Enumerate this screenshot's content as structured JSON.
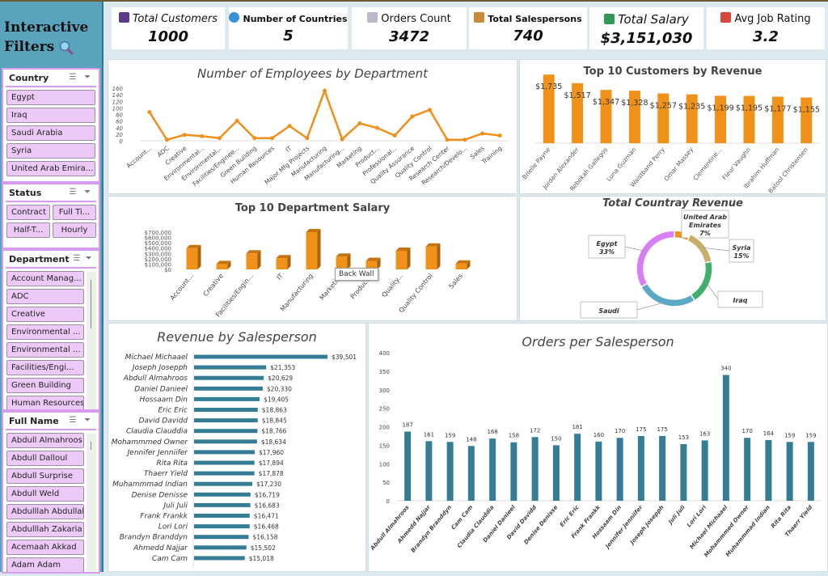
{
  "sidebar": {
    "title_line1": "Interactive",
    "title_line2": "Filters",
    "title_icon": "magnifier-icon",
    "slicers": {
      "country": {
        "label": "Country",
        "items": [
          "Egypt",
          "Iraq",
          "Saudi Arabia",
          "Syria",
          "United Arab Emira..."
        ]
      },
      "status": {
        "label": "Status",
        "items": [
          "Contract",
          "Full Ti...",
          "Half-T...",
          "Hourly"
        ]
      },
      "department": {
        "label": "Department",
        "items": [
          "Account Manag...",
          "ADC",
          "Creative",
          "Environmental ...",
          "Environmental ...",
          "Facilities/Engi...",
          "Green Building",
          "Human Resources"
        ]
      },
      "fullname": {
        "label": "Full Name",
        "items": [
          "Abdull Almahroos",
          "Abdull Dalloul",
          "Abdull Surprise",
          "Abdull Weld",
          "Abdulllah Abdullah",
          "Abdulllah Zakaria",
          "Acemaah Akkad",
          "Adam Adam"
        ]
      }
    },
    "icons": {
      "multi_select": "multi-select-icon",
      "clear_filter": "clear-filter-icon"
    }
  },
  "kpis": [
    {
      "label": "Total Customers",
      "value": "1000",
      "icon": "customer-icon",
      "color": "#5b3a8c"
    },
    {
      "label": "Number of Countries",
      "value": "5",
      "icon": "globe-icon",
      "color": "#3b8fd6"
    },
    {
      "label": "Orders Count",
      "value": "3472",
      "icon": "receipt-icon",
      "color": "#b9b9c9"
    },
    {
      "label": "Total Salespersons",
      "value": "740",
      "icon": "salesperson-icon",
      "color": "#c98a3a"
    },
    {
      "label": "Total Salary",
      "value": "$3,151,030",
      "icon": "money-icon",
      "color": "#2e9a55"
    },
    {
      "label": "Avg Job Rating",
      "value": "3.2",
      "icon": "rating-chart-icon",
      "color": "#d9463e"
    }
  ],
  "tooltip": "Back Wall",
  "chart_data": [
    {
      "id": "employees",
      "type": "line",
      "title": "Number of Employees by Department",
      "categories": [
        "Account...",
        "ADC",
        "Creative",
        "Environmental...",
        "Environmental...",
        "Facilities/Enginee...",
        "Green Building",
        "Human Resources",
        "IT",
        "Major Mfg Projects",
        "Manufacturing",
        "Manufacturing...",
        "Marketing",
        "Product...",
        "Professional...",
        "Quality Assurance",
        "Quality Control",
        "Research Center",
        "Research/Develo...",
        "Sales",
        "Training"
      ],
      "values": [
        87,
        3,
        18,
        14,
        8,
        61,
        8,
        8,
        45,
        8,
        152,
        5,
        53,
        39,
        16,
        74,
        94,
        3,
        3,
        22,
        16
      ],
      "yticks": [
        0,
        20,
        40,
        60,
        80,
        100,
        120,
        140,
        160
      ],
      "ylim": [
        0,
        160
      ],
      "color": "#f0901c"
    },
    {
      "id": "customers",
      "type": "bar",
      "title": "Top 10 Customers by Revenue",
      "categories": [
        "Brielle Payne",
        "Jordan Alexander",
        "Rebekah Gallegos",
        "Luna Guzman",
        "Waistband Perry",
        "Omar Massey",
        "Clementine...",
        "Fleur Vaughn",
        "Ibrahim Huffman",
        "Batool Christensen"
      ],
      "values": [
        1735,
        1517,
        1347,
        1328,
        1257,
        1235,
        1199,
        1195,
        1177,
        1155
      ],
      "labels": [
        "$1,735",
        "$1,517",
        "$1,347",
        "$1,328",
        "$1,257",
        "$1,235",
        "$1,199",
        "$1,195",
        "$1,177",
        "$1,155"
      ],
      "color": "#f0921a"
    },
    {
      "id": "deptsalary",
      "type": "bar",
      "title": "Top 10 Department Salary",
      "categories": [
        "Account...",
        "Creative",
        "Facilities/Engin...",
        "IT",
        "Manufacturing",
        "Marketing",
        "Product...",
        "Quality...",
        "Quality Control",
        "Sales"
      ],
      "values": [
        400000,
        100000,
        300000,
        210000,
        700000,
        240000,
        160000,
        350000,
        430000,
        110000
      ],
      "yticks": [
        "$0",
        "$100,000",
        "$200,000",
        "$300,000",
        "$400,000",
        "$500,000",
        "$600,000",
        "$700,000"
      ],
      "ylim": [
        0,
        700000
      ],
      "color": "#f0921a"
    },
    {
      "id": "countryrev",
      "type": "pie",
      "title": "Total Countray Revenue",
      "slices": [
        {
          "name": "United Arab Emirates",
          "label1": "United Arab",
          "label2": "Emirates",
          "pct": "7%",
          "value": 7,
          "color": "#f0921a"
        },
        {
          "name": "Syria",
          "label1": "Syria",
          "label2": "",
          "pct": "15%",
          "value": 15,
          "color": "#c9ad6a"
        },
        {
          "name": "Iraq",
          "label1": "Iraq",
          "label2": "",
          "pct": "",
          "value": 19,
          "color": "#3fb06c"
        },
        {
          "name": "Saudi",
          "label1": "Saudi",
          "label2": "",
          "pct": "",
          "value": 26,
          "color": "#5aa8c6"
        },
        {
          "name": "Egypt",
          "label1": "Egypt",
          "label2": "",
          "pct": "33%",
          "value": 33,
          "color": "#d77ff5"
        }
      ]
    },
    {
      "id": "revsales",
      "type": "bar",
      "orientation": "horizontal",
      "title": "Revenue by Salesperson",
      "categories": [
        "Michael Michaael",
        "Joseph Josepph",
        "Abdull Almahroos",
        "Daniel Danieel",
        "Hossaam Din",
        "Eric Eric",
        "David Davidd",
        "Claudia Clauddia",
        "Mohammmed Owner",
        "Jennifer Jenniifer",
        "Rita Rita",
        "Thaerr Yield",
        "Muhammmad Indian",
        "Denise Denisse",
        "Juli Juli",
        "Frank Frankk",
        "Lori Lori",
        "Brandyn Branddyn",
        "Ahmedd Najjar",
        "Cam Cam"
      ],
      "values": [
        39501,
        21353,
        20629,
        20330,
        19405,
        18863,
        18845,
        18766,
        18634,
        17960,
        17894,
        17878,
        17230,
        16719,
        16683,
        16471,
        16468,
        16158,
        15502,
        15018
      ],
      "labels": [
        "$39,501",
        "$21,353",
        "$20,629",
        "$20,330",
        "$19,405",
        "$18,863",
        "$18,845",
        "$18,766",
        "$18,634",
        "$17,960",
        "$17,894",
        "$17,878",
        "$17,230",
        "$16,719",
        "$16,683",
        "$16,471",
        "$16,468",
        "$16,158",
        "$15,502",
        "$15,018"
      ],
      "color": "#357d95"
    },
    {
      "id": "orders",
      "type": "bar",
      "title": "Orders per Salesperson",
      "categories": [
        "Abdull Almahroos",
        "Ahmedd Najjar",
        "Brandyn Branddyn",
        "Cam Cam",
        "Claudia Clauddia",
        "Daniel Danieel",
        "David Davidd",
        "Denise Denisse",
        "Eric Eric",
        "Frank Frankk",
        "Hossaam Din",
        "Jennifer Jenniifer",
        "Joseph Josepph",
        "Juli Juli",
        "Lori Lori",
        "Michael Michaael",
        "Mohammmed Owner",
        "Muhammmad Indian",
        "Rita Rita",
        "Thaerr Yield"
      ],
      "values": [
        187,
        161,
        159,
        148,
        168,
        158,
        172,
        150,
        181,
        160,
        170,
        175,
        175,
        153,
        163,
        340,
        170,
        164,
        159,
        159
      ],
      "yticks": [
        0,
        50,
        100,
        150,
        200,
        250,
        300,
        350,
        400
      ],
      "ylim": [
        0,
        400
      ],
      "color": "#357d95"
    }
  ]
}
